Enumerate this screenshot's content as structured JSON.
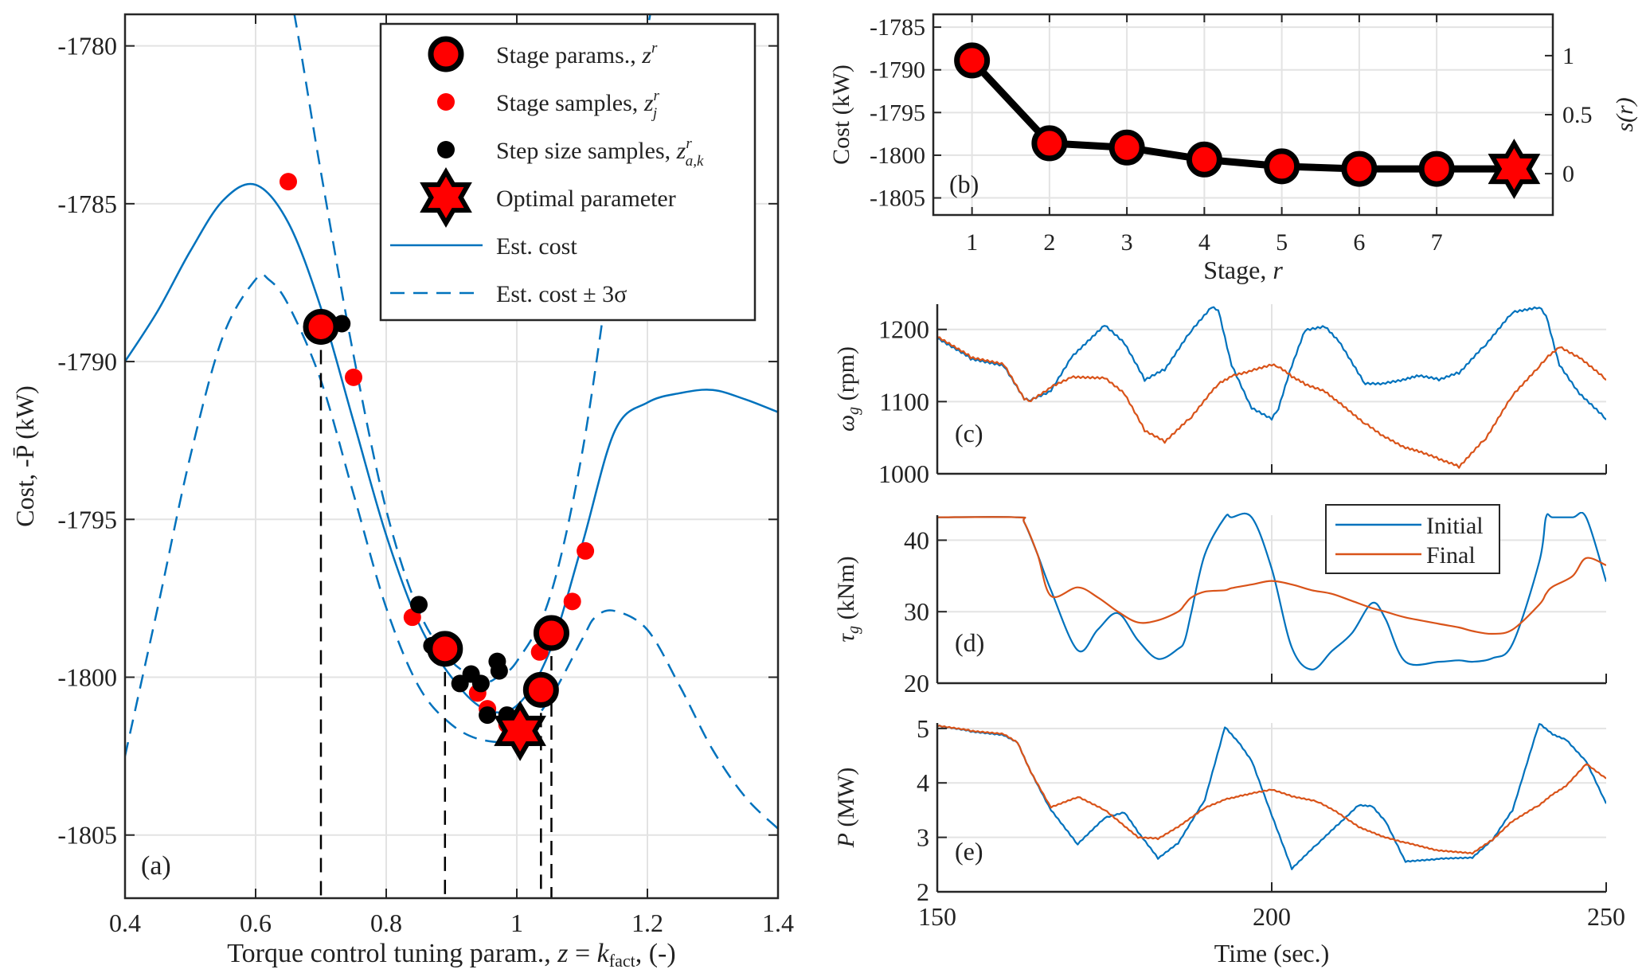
{
  "chart_data": [
    {
      "id": "a",
      "type": "scatter",
      "panel_label": "(a)",
      "xlabel": "Torque control tuning param., z = k_fact, (-)",
      "xlabel_parts": {
        "main": "Torque control tuning param., ",
        "z": "z",
        "eq": " = ",
        "k": "k",
        "sub": "fact",
        "tail": ", (-)"
      },
      "ylabel": "Cost, -P̄ (kW)",
      "xlim": [
        0.4,
        1.4
      ],
      "ylim": [
        -1807,
        -1779
      ],
      "xticks": [
        0.4,
        0.6,
        0.8,
        1,
        1.2,
        1.4
      ],
      "xtick_labels": [
        "0.4",
        "0.6",
        "0.8",
        "1",
        "1.2",
        "1.4"
      ],
      "yticks": [
        -1780,
        -1785,
        -1790,
        -1795,
        -1800,
        -1805
      ],
      "ytick_labels": [
        "-1780",
        "-1785",
        "-1790",
        "-1795",
        "-1800",
        "-1805"
      ],
      "grid": true,
      "legend_position": "top-right",
      "legend": [
        {
          "label": "Stage params., z^r",
          "text": "Stage params., ",
          "sym": "z",
          "sup": "r",
          "sub": "",
          "marker": "big-circle"
        },
        {
          "label": "Stage samples, z_j^r",
          "text": "Stage samples, ",
          "sym": "z",
          "sup": "r",
          "sub": "j",
          "marker": "red-dot"
        },
        {
          "label": "Step size samples, z_{a,k}^r",
          "text": "Step size samples, ",
          "sym": "z",
          "sup": "r",
          "sub": "a,k",
          "marker": "black-dot"
        },
        {
          "label": "Optimal parameter",
          "text": "Optimal parameter",
          "sym": "",
          "sup": "",
          "sub": "",
          "marker": "star"
        },
        {
          "label": "Est. cost",
          "text": "Est. cost",
          "sym": "",
          "sup": "",
          "sub": "",
          "marker": "solid-line"
        },
        {
          "label": "Est. cost ± 3σ",
          "text": "Est. cost ± 3σ",
          "sym": "",
          "sup": "",
          "sub": "",
          "marker": "dashed-line"
        }
      ],
      "est_cost": {
        "x": [
          0.4,
          0.45,
          0.5,
          0.55,
          0.6,
          0.65,
          0.7,
          0.75,
          0.8,
          0.85,
          0.9,
          0.95,
          1.0,
          1.05,
          1.1,
          1.15,
          1.2,
          1.25,
          1.3,
          1.35,
          1.4
        ],
        "y": [
          -1790.0,
          -1788.4,
          -1786.5,
          -1784.9,
          -1784.4,
          -1785.6,
          -1788.3,
          -1791.9,
          -1795.5,
          -1798.3,
          -1800.0,
          -1801.0,
          -1800.9,
          -1799.2,
          -1795.8,
          -1792.2,
          -1791.3,
          -1791.0,
          -1790.9,
          -1791.2,
          -1791.6
        ]
      },
      "est_cost_upper": {
        "x": [
          0.6,
          0.65,
          0.7,
          0.75,
          0.8,
          0.85,
          0.9,
          0.95,
          0.97,
          1.0,
          1.05,
          1.1,
          1.15,
          1.2,
          1.25
        ],
        "y": [
          -1774.0,
          -1778.0,
          -1784.0,
          -1789.8,
          -1794.7,
          -1797.9,
          -1799.5,
          -1800.1,
          -1800.0,
          -1799.5,
          -1797.5,
          -1792.9,
          -1786.0,
          -1779.5,
          -1774.0
        ]
      },
      "est_cost_lower": {
        "x": [
          0.4,
          0.45,
          0.5,
          0.55,
          0.6,
          0.62,
          0.65,
          0.7,
          0.75,
          0.8,
          0.85,
          0.9,
          0.95,
          1.0,
          1.05,
          1.1,
          1.12,
          1.15,
          1.2,
          1.25,
          1.3,
          1.35,
          1.4
        ],
        "y": [
          -1802.5,
          -1797.8,
          -1793.0,
          -1789.2,
          -1787.4,
          -1787.4,
          -1788.2,
          -1790.6,
          -1794.2,
          -1797.8,
          -1800.3,
          -1801.5,
          -1802.0,
          -1801.9,
          -1800.7,
          -1798.8,
          -1798.1,
          -1797.9,
          -1798.5,
          -1800.3,
          -1802.3,
          -1803.8,
          -1804.8
        ]
      },
      "stage_params": {
        "x": [
          0.7,
          0.89,
          1.037,
          1.053
        ],
        "y": [
          -1788.9,
          -1799.1,
          -1800.4,
          -1798.6
        ]
      },
      "stage_samples": {
        "x": [
          0.65,
          0.75,
          0.84,
          0.94,
          0.955,
          0.985,
          1.035,
          1.085,
          1.105
        ],
        "y": [
          -1784.3,
          -1790.5,
          -1798.1,
          -1800.5,
          -1801.0,
          -1801.5,
          -1799.2,
          -1797.6,
          -1796.0
        ]
      },
      "step_samples": {
        "x": [
          0.732,
          0.85,
          0.87,
          0.913,
          0.93,
          0.945,
          0.955,
          0.97,
          0.973,
          0.985
        ],
        "y": [
          -1788.8,
          -1797.7,
          -1799.0,
          -1800.2,
          -1799.9,
          -1800.2,
          -1801.2,
          -1799.5,
          -1799.8,
          -1801.2
        ]
      },
      "optimal": {
        "x": 1.005,
        "y": -1801.7
      },
      "vlines_x": [
        0.7,
        0.89,
        1.037,
        1.053
      ],
      "colors": {
        "blue": "#0072BD",
        "red": "#FF0000",
        "black": "#000000"
      }
    },
    {
      "id": "b",
      "type": "line",
      "panel_label": "(b)",
      "xlabel": "Stage, r",
      "xlabel_parts": {
        "main": "Stage, ",
        "sym": "r"
      },
      "ylabel": "Cost (kW)",
      "y2label": "s(r)",
      "categories": [
        1,
        2,
        3,
        4,
        5,
        6,
        7,
        8
      ],
      "xtick_labels": [
        "1",
        "2",
        "3",
        "4",
        "5",
        "6",
        "7"
      ],
      "values": [
        -1788.9,
        -1798.6,
        -1799.1,
        -1800.5,
        -1801.3,
        -1801.6,
        -1801.6,
        -1801.6
      ],
      "final_marker": "star",
      "xlim": [
        0.5,
        8.5
      ],
      "ylim": [
        -1807,
        -1783.5
      ],
      "yticks": [
        -1785,
        -1790,
        -1795,
        -1800,
        -1805
      ],
      "ytick_labels": [
        "-1785",
        "-1790",
        "-1795",
        "-1800",
        "-1805"
      ],
      "y2lim": [
        -0.35,
        1.35
      ],
      "y2ticks": [
        0,
        0.5,
        1
      ],
      "y2tick_labels": [
        "0",
        "0.5",
        "1"
      ],
      "grid": true
    },
    {
      "id": "c",
      "type": "line",
      "panel_label": "(c)",
      "ylabel": "ω_g (rpm)",
      "ylabel_parts": {
        "sym": "ω",
        "sub": "g",
        "unit": " (rpm)"
      },
      "xlim": [
        150,
        250
      ],
      "ylim": [
        1000,
        1235
      ],
      "yticks": [
        1000,
        1100,
        1200
      ],
      "ytick_labels": [
        "1000",
        "1100",
        "1200"
      ],
      "x": [
        150,
        155,
        160,
        163,
        164,
        167,
        170,
        175,
        178,
        181,
        184,
        188,
        191,
        192,
        194,
        197,
        200,
        201,
        203,
        205,
        208,
        210,
        214,
        217,
        220,
        222,
        225,
        228,
        232,
        236,
        240,
        241,
        243,
        246,
        250
      ],
      "series": [
        {
          "name": "Initial",
          "color": "#0072BD",
          "values": [
            1188,
            1160,
            1150,
            1105,
            1103,
            1115,
            1160,
            1205,
            1180,
            1130,
            1145,
            1200,
            1232,
            1228,
            1150,
            1090,
            1075,
            1090,
            1150,
            1200,
            1205,
            1185,
            1125,
            1125,
            1130,
            1135,
            1130,
            1140,
            1180,
            1225,
            1232,
            1220,
            1150,
            1110,
            1075
          ]
        },
        {
          "name": "Final",
          "color": "#D95319",
          "values": [
            1190,
            1162,
            1152,
            1105,
            1102,
            1120,
            1133,
            1132,
            1110,
            1060,
            1045,
            1080,
            1115,
            1125,
            1135,
            1142,
            1150,
            1148,
            1135,
            1125,
            1115,
            1100,
            1070,
            1050,
            1035,
            1030,
            1020,
            1010,
            1050,
            1110,
            1150,
            1160,
            1175,
            1160,
            1130
          ]
        }
      ],
      "grid": true
    },
    {
      "id": "d",
      "type": "line",
      "panel_label": "(d)",
      "ylabel": "τ_g (kNm)",
      "ylabel_parts": {
        "sym": "τ",
        "sub": "g",
        "unit": " (kNm)"
      },
      "xlim": [
        150,
        250
      ],
      "ylim": [
        20,
        43.5
      ],
      "yticks": [
        20,
        30,
        40
      ],
      "ytick_labels": [
        "20",
        "30",
        "40"
      ],
      "legend_position": "top-right",
      "x": [
        150,
        162,
        163,
        165,
        167,
        171,
        174,
        177,
        180,
        183,
        186,
        187,
        188,
        190,
        193,
        194,
        197,
        200,
        203,
        206,
        209,
        212,
        215,
        217,
        220,
        225,
        228,
        230,
        233,
        236,
        240,
        241,
        242,
        245,
        247,
        250
      ],
      "series": [
        {
          "name": "Initial",
          "color": "#0072BD",
          "values": [
            43.2,
            43.2,
            42.5,
            38,
            33,
            24.6,
            27.5,
            29.8,
            26,
            23.4,
            24.8,
            26,
            30,
            38,
            43.2,
            43.2,
            43.2,
            36,
            25,
            21.9,
            24.5,
            27,
            31.2,
            29,
            23.0,
            23.0,
            23.2,
            23.0,
            23.5,
            25.5,
            37,
            43.2,
            43.2,
            43.2,
            43.2,
            34.2
          ]
        },
        {
          "name": "Final",
          "color": "#D95319",
          "values": [
            43.2,
            43.2,
            42.5,
            38,
            32.2,
            33.4,
            32,
            30,
            28.5,
            28.8,
            30,
            31,
            32,
            32.8,
            33,
            33.3,
            33.8,
            34.3,
            33.8,
            33,
            32.5,
            31.5,
            30.5,
            30,
            29.2,
            28.3,
            27.8,
            27.3,
            26.9,
            27.5,
            31,
            32.5,
            33.5,
            35,
            37.5,
            36.5
          ]
        }
      ],
      "grid": true
    },
    {
      "id": "e",
      "type": "line",
      "panel_label": "(e)",
      "ylabel": "P (MW)",
      "ylabel_parts": {
        "sym": "P",
        "sub": "",
        "unit": " (MW)"
      },
      "xlabel": "Time (sec.)",
      "xlim": [
        150,
        250
      ],
      "ylim": [
        2,
        5.1
      ],
      "xticks": [
        150,
        200,
        250
      ],
      "xtick_labels": [
        "150",
        "200",
        "250"
      ],
      "yticks": [
        2,
        3,
        4,
        5
      ],
      "ytick_labels": [
        "2",
        "3",
        "4",
        "5"
      ],
      "x": [
        150,
        155,
        160,
        162,
        164,
        167,
        171,
        175,
        178,
        180,
        183,
        186,
        190,
        193,
        195,
        197,
        200,
        203,
        207,
        210,
        213,
        215,
        217,
        220,
        225,
        230,
        233,
        236,
        240,
        242,
        244,
        247,
        250
      ],
      "series": [
        {
          "name": "Initial",
          "color": "#0072BD",
          "values": [
            5.05,
            4.95,
            4.88,
            4.75,
            4.2,
            3.5,
            2.87,
            3.35,
            3.45,
            3.1,
            2.62,
            2.9,
            3.7,
            5.03,
            4.75,
            4.4,
            3.4,
            2.42,
            2.9,
            3.25,
            3.6,
            3.58,
            3.3,
            2.55,
            2.6,
            2.62,
            2.95,
            3.5,
            5.1,
            4.9,
            4.8,
            4.4,
            3.62
          ]
        },
        {
          "name": "Final",
          "color": "#D95319",
          "values": [
            5.05,
            4.96,
            4.9,
            4.75,
            4.2,
            3.55,
            3.74,
            3.5,
            3.2,
            3.0,
            2.98,
            3.2,
            3.55,
            3.7,
            3.75,
            3.8,
            3.87,
            3.75,
            3.65,
            3.45,
            3.2,
            3.1,
            3.0,
            2.9,
            2.75,
            2.7,
            2.95,
            3.3,
            3.6,
            3.8,
            3.95,
            4.35,
            4.08
          ]
        }
      ],
      "grid": true
    }
  ],
  "shared_time_axis": {
    "xlabel": "Time (sec.)"
  }
}
